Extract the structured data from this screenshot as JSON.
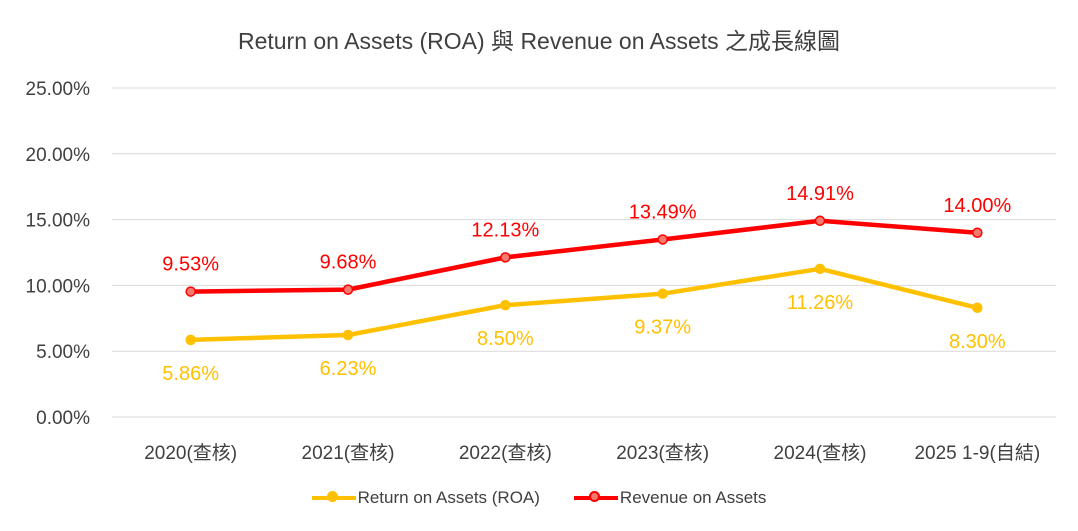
{
  "chart_data": {
    "type": "line",
    "title": "Return on Assets (ROA) 與 Revenue on Assets 之成長線圖",
    "categories": [
      "2020(查核)",
      "2021(查核)",
      "2022(查核)",
      "2023(查核)",
      "2024(查核)",
      "2025 1-9(自結)"
    ],
    "ylim": [
      0,
      25
    ],
    "yticks": [
      "0.00%",
      "5.00%",
      "10.00%",
      "15.00%",
      "20.00%",
      "25.00%"
    ],
    "ytick_values": [
      0,
      5,
      10,
      15,
      20,
      25
    ],
    "grid": true,
    "legend_position": "bottom",
    "series": [
      {
        "name": "Return on Assets (ROA)",
        "values": [
          5.86,
          6.23,
          8.5,
          9.37,
          11.26,
          8.3
        ],
        "labels": [
          "5.86%",
          "6.23%",
          "8.50%",
          "9.37%",
          "11.26%",
          "8.30%"
        ],
        "color": "#FFC000",
        "label_color": "#FFC000",
        "marker_fill": "#FFC000",
        "label_side": "below"
      },
      {
        "name": "Revenue on Assets",
        "values": [
          9.53,
          9.68,
          12.13,
          13.49,
          14.91,
          14.0
        ],
        "labels": [
          "9.53%",
          "9.68%",
          "12.13%",
          "13.49%",
          "14.91%",
          "14.00%"
        ],
        "color": "#FF0000",
        "label_color": "#FF0000",
        "marker_fill": "#F4796E",
        "label_side": "above"
      }
    ]
  }
}
